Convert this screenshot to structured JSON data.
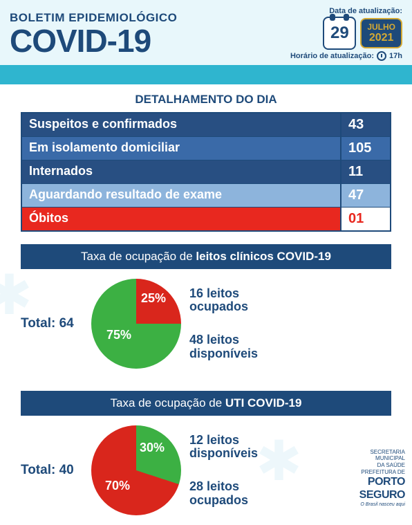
{
  "header": {
    "boletim": "BOLETIM EPIDEMIOLÓGICO",
    "covid": "COVID-19",
    "data_label": "Data de atualização:",
    "day": "29",
    "month": "JULHO",
    "year": "2021",
    "hora_label": "Horário de atualização:",
    "hora": "17h"
  },
  "detail": {
    "title": "DETALHAMENTO DO DIA",
    "rows": [
      {
        "label": "Suspeitos e confirmados",
        "value": "43",
        "cls": "r-dkblue"
      },
      {
        "label": "Em isolamento domiciliar",
        "value": "105",
        "cls": "r-blue"
      },
      {
        "label": "Internados",
        "value": "11",
        "cls": "r-dkblue"
      },
      {
        "label": "Aguardando resultado de exame",
        "value": "47",
        "cls": "r-ltblue"
      },
      {
        "label": "Óbitos",
        "value": "01",
        "cls": "r-red"
      }
    ]
  },
  "chart1": {
    "title_pre": "Taxa de ocupação de ",
    "title_bold": "leitos clínicos COVID-19",
    "total_label": "Total: ",
    "total": "64",
    "occupied_pct": 25,
    "available_pct": 75,
    "occupied_color": "#d9261c",
    "available_color": "#3cb043",
    "occupied_label_line1": "16 leitos",
    "occupied_label_line2": "ocupados",
    "available_label_line1": "48 leitos",
    "available_label_line2": "disponíveis",
    "pct_occ_text": "25%",
    "pct_avail_text": "75%"
  },
  "chart2": {
    "title_pre": "Taxa de ocupação de ",
    "title_bold": "UTI COVID-19",
    "total_label": "Total: ",
    "total": "40",
    "occupied_pct": 70,
    "available_pct": 30,
    "occupied_color": "#d9261c",
    "available_color": "#3cb043",
    "top_label_line1": "12 leitos",
    "top_label_line2": "disponíveis",
    "bottom_label_line1": "28 leitos",
    "bottom_label_line2": "ocupados",
    "pct_occ_text": "70%",
    "pct_avail_text": "30%"
  },
  "footer": {
    "line1": "SECRETARIA",
    "line2": "MUNICIPAL",
    "line3": "DA SAÚDE",
    "line4": "PREFEITURA DE",
    "brand1": "PORTO",
    "brand2": "SEGURO",
    "tag": "O Brasil nasceu aqui"
  }
}
